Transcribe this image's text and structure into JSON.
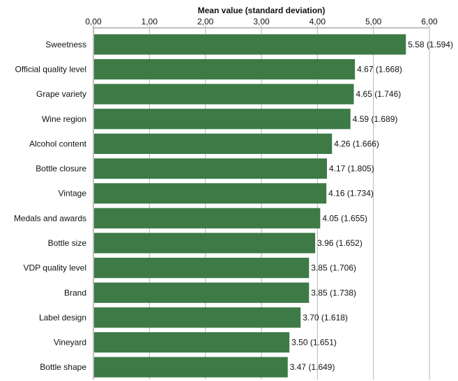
{
  "chart_data": {
    "type": "bar",
    "orientation": "horizontal",
    "title": "",
    "xlabel": "Mean value (standard deviation)",
    "ylabel": "",
    "xlim": [
      0,
      6
    ],
    "xticks": [
      0,
      1,
      2,
      3,
      4,
      5,
      6
    ],
    "xtick_labels": [
      "0,00",
      "1,00",
      "2,00",
      "3,00",
      "4,00",
      "5,00",
      "6,00"
    ],
    "x_axis_position": "top",
    "grid": "vertical",
    "categories": [
      "Sweetness",
      "Official quality level",
      "Grape variety",
      "Wine region",
      "Alcohol content",
      "Bottle closure",
      "Vintage",
      "Medals and awards",
      "Bottle size",
      "VDP quality level",
      "Brand",
      "Label design",
      "Vineyard",
      "Bottle shape"
    ],
    "values": [
      5.58,
      4.67,
      4.65,
      4.59,
      4.26,
      4.17,
      4.16,
      4.05,
      3.96,
      3.85,
      3.85,
      3.7,
      3.5,
      3.47
    ],
    "data_labels": [
      "5.58 (1.594)",
      "4.67 (1.668)",
      "4.65 (1.746)",
      "4.59 (1.689)",
      "4.26 (1.666)",
      "4.17 (1.805)",
      "4.16 (1.734)",
      "4.05 (1.655)",
      "3.96 (1.652)",
      "3.85 (1.706)",
      "3.85 (1.738)",
      "3.70 (1.618)",
      "3.50 (1.651)",
      "3.47 (1.649)"
    ],
    "colors": {
      "bar": "#3d7a45",
      "grid": "#b3b3b3",
      "axis": "#7f7f7f"
    }
  }
}
